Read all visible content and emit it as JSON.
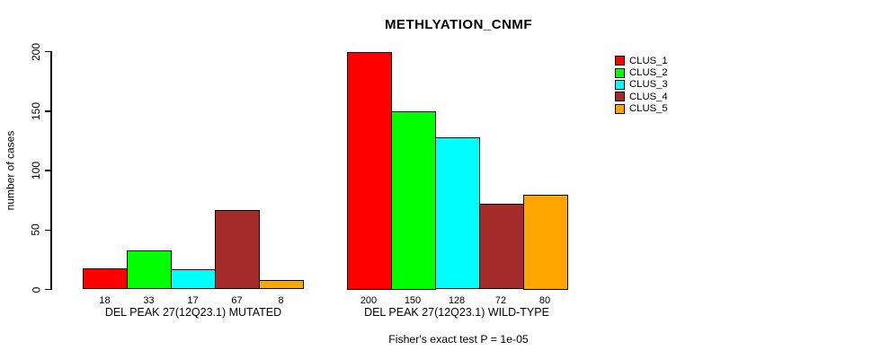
{
  "chart_data": {
    "type": "bar",
    "title": "METHLYATION_CNMF",
    "ylabel": "number of cases",
    "ylim": [
      0,
      200
    ],
    "yticks": [
      0,
      50,
      100,
      150,
      200
    ],
    "grid": false,
    "legend_position": "top-right",
    "series": [
      {
        "name": "CLUS_1",
        "color": "#FF0000"
      },
      {
        "name": "CLUS_2",
        "color": "#00FF00"
      },
      {
        "name": "CLUS_3",
        "color": "#00FFFF"
      },
      {
        "name": "CLUS_4",
        "color": "#A52A2A"
      },
      {
        "name": "CLUS_5",
        "color": "#FFA500"
      }
    ],
    "groups": [
      {
        "label": "DEL PEAK 27(12Q23.1) MUTATED",
        "values": [
          18,
          33,
          17,
          67,
          8
        ]
      },
      {
        "label": "DEL PEAK 27(12Q23.1) WILD-TYPE",
        "values": [
          200,
          150,
          128,
          72,
          80
        ]
      }
    ],
    "annotation": "Fisher's exact test P = 1e-05",
    "bar_border_color": "#000000",
    "axis_color": "#000000",
    "background_color": "#FFFFFF"
  }
}
